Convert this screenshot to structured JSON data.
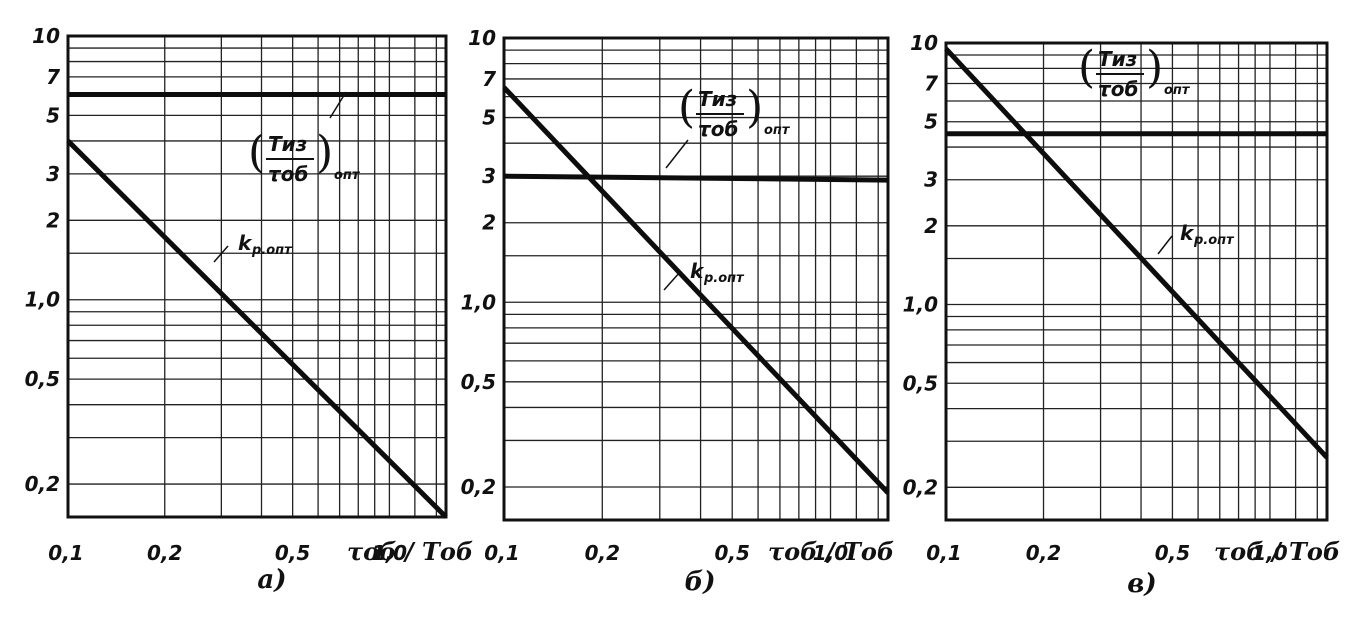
{
  "chart_data": [
    {
      "type": "line",
      "panel_label": "а)",
      "xscale": "log",
      "yscale": "log",
      "xlim": [
        0.1,
        1.5
      ],
      "ylim": [
        0.15,
        10
      ],
      "xticks": [
        "0,1",
        "0,2",
        "0,5",
        "1,0"
      ],
      "xlabel": "τоб / Tоб",
      "yticks": [
        "10",
        "7",
        "5",
        "3",
        "2",
        "1,0",
        "0,5",
        "0,2"
      ],
      "grid": true,
      "series": [
        {
          "name": "kр.опт",
          "x": [
            0.1,
            1.5
          ],
          "y": [
            4.0,
            0.15
          ]
        },
        {
          "name": "(Tиз / τоб)опт",
          "x": [
            0.1,
            1.5
          ],
          "y": [
            6.0,
            6.0
          ]
        }
      ],
      "annotations": [
        {
          "text": "kр.опт",
          "main": "k",
          "sub": "р.опт"
        },
        {
          "text": "(Tиз / τоб)опт",
          "num": "Tиз",
          "den": "τоб",
          "sub": "опт"
        }
      ]
    },
    {
      "type": "line",
      "panel_label": "б)",
      "xscale": "log",
      "yscale": "log",
      "xlim": [
        0.1,
        1.5
      ],
      "ylim": [
        0.15,
        10
      ],
      "xticks": [
        "0,1",
        "0,2",
        "0,5",
        "1,0"
      ],
      "xlabel": "τоб / Tоб",
      "yticks": [
        "10",
        "7",
        "5",
        "3",
        "2",
        "1,0",
        "0,5",
        "0,2"
      ],
      "grid": true,
      "series": [
        {
          "name": "kр.опт",
          "x": [
            0.1,
            1.5
          ],
          "y": [
            6.5,
            0.19
          ]
        },
        {
          "name": "(Tиз / τоб)опт",
          "x": [
            0.1,
            1.5
          ],
          "y": [
            3.0,
            2.9
          ]
        }
      ],
      "annotations": [
        {
          "text": "kр.опт",
          "main": "k",
          "sub": "р.опт"
        },
        {
          "text": "(Tиз / τоб)опт",
          "num": "Tиз",
          "den": "τоб",
          "sub": "опт"
        }
      ]
    },
    {
      "type": "line",
      "panel_label": "в)",
      "xscale": "log",
      "yscale": "log",
      "xlim": [
        0.1,
        1.5
      ],
      "ylim": [
        0.15,
        10
      ],
      "xticks": [
        "0,1",
        "0,2",
        "0,5",
        "1,0"
      ],
      "xlabel": "τоб / Tоб",
      "yticks": [
        "10",
        "7",
        "5",
        "3",
        "2",
        "1,0",
        "0,5",
        "0,2"
      ],
      "grid": true,
      "series": [
        {
          "name": "kр.опт",
          "x": [
            0.1,
            1.5
          ],
          "y": [
            9.5,
            0.26
          ]
        },
        {
          "name": "(Tиз / τоб)опт",
          "x": [
            0.1,
            1.5
          ],
          "y": [
            4.5,
            4.5
          ]
        }
      ],
      "annotations": [
        {
          "text": "kр.опт",
          "main": "k",
          "sub": "р.опт"
        },
        {
          "text": "(Tиз / τоб)опт",
          "num": "Tиз",
          "den": "τоб",
          "sub": "опт"
        }
      ]
    }
  ]
}
